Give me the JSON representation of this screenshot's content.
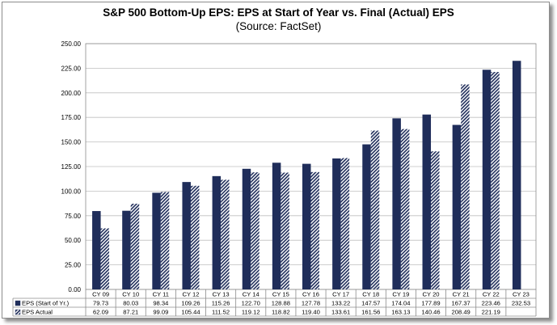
{
  "chart_data": {
    "type": "bar",
    "title": "S&P 500 Bottom-Up EPS: EPS at Start of Year vs. Final (Actual) EPS",
    "subtitle": "(Source: FactSet)",
    "categories": [
      "CY 09",
      "CY 10",
      "CY 11",
      "CY 12",
      "CY 13",
      "CY 14",
      "CY 15",
      "CY 16",
      "CY 17",
      "CY 18",
      "CY 19",
      "CY 20",
      "CY 21",
      "CY 22",
      "CY 23"
    ],
    "series": [
      {
        "name": "EPS (Start of Yr.)",
        "color": "#1f2d5a",
        "pattern": "solid",
        "values": [
          79.73,
          80.03,
          98.34,
          109.26,
          115.26,
          122.7,
          128.88,
          127.78,
          133.22,
          147.57,
          174.04,
          177.89,
          167.37,
          223.46,
          232.53
        ],
        "labels": [
          "79.73",
          "80.03",
          "98.34",
          "109.26",
          "115.26",
          "122.70",
          "128.88",
          "127.78",
          "133.22",
          "147.57",
          "174.04",
          "177.89",
          "167.37",
          "223.46",
          "232.53"
        ]
      },
      {
        "name": "EPS Actual",
        "color": "#1f2d5a",
        "pattern": "diagonal-hatch",
        "values": [
          62.09,
          87.21,
          99.09,
          105.44,
          111.52,
          119.12,
          118.82,
          119.4,
          133.61,
          161.56,
          163.13,
          140.46,
          208.49,
          221.19,
          null
        ],
        "labels": [
          "62.09",
          "87.21",
          "99.09",
          "105.44",
          "111.52",
          "119.12",
          "118.82",
          "119.40",
          "133.61",
          "161.56",
          "163.13",
          "140.46",
          "208.49",
          "221.19",
          ""
        ]
      }
    ],
    "yticks": [
      0,
      25,
      50,
      75,
      100,
      125,
      150,
      175,
      200,
      225,
      250
    ],
    "ytick_labels": [
      "0.00",
      "25.00",
      "50.00",
      "75.00",
      "100.00",
      "125.00",
      "150.00",
      "175.00",
      "200.00",
      "225.00",
      "250.00"
    ],
    "ylim": [
      0,
      250
    ],
    "grid": true,
    "legend": "data-table"
  }
}
